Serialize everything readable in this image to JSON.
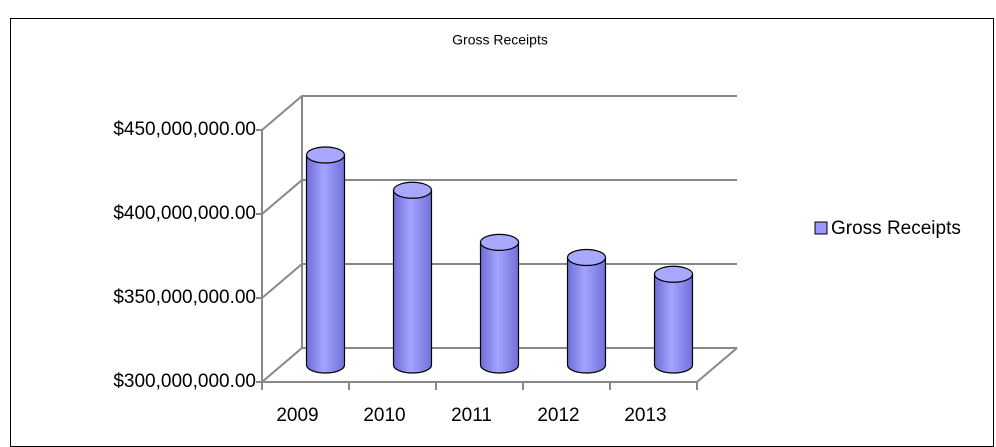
{
  "chart_data": {
    "type": "bar3d",
    "title": "Gross Receipts",
    "categories": [
      "2009",
      "2010",
      "2011",
      "2012",
      "2013"
    ],
    "series": [
      {
        "name": "Gross Receipts",
        "color": "#9999ff",
        "values": [
          425000000,
          404000000,
          373000000,
          364000000,
          354000000
        ]
      }
    ],
    "ylim": [
      300000000,
      450000000
    ],
    "yticks": [
      {
        "value": 300000000,
        "label": "$300,000,000.00"
      },
      {
        "value": 350000000,
        "label": "$350,000,000.00"
      },
      {
        "value": 400000000,
        "label": "$400,000,000.00"
      },
      {
        "value": 450000000,
        "label": "$450,000,000.00"
      }
    ],
    "grid": true,
    "legend": "right"
  }
}
